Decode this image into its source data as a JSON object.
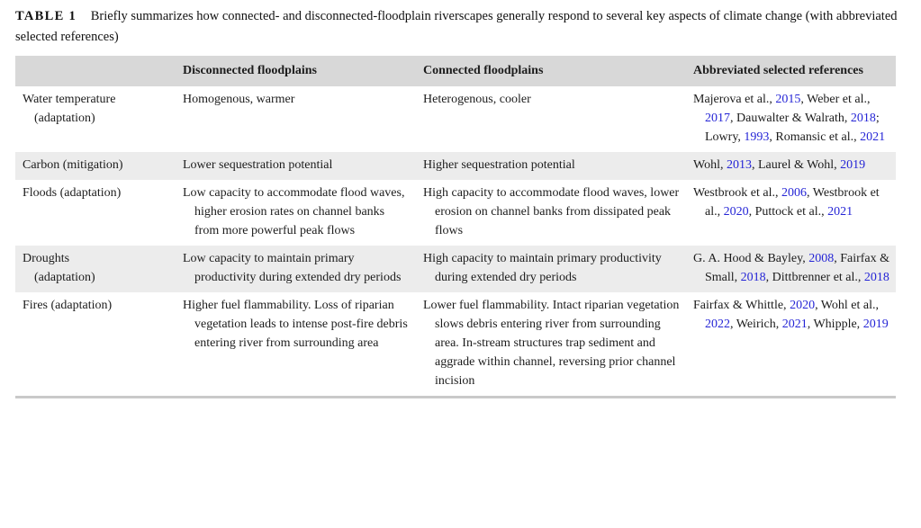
{
  "caption": {
    "label": "TABLE 1",
    "text": "Briefly summarizes how connected- and disconnected-floodplain riverscapes generally respond to several key aspects of climate change (with abbreviated selected references)"
  },
  "colors": {
    "header_bg": "#d8d8d8",
    "alt_row_bg": "#ececec",
    "link_blue": "#2525d6",
    "text": "#1c1c1c",
    "bottom_rule": "#c9c9c9"
  },
  "table": {
    "columns": [
      "",
      "Disconnected floodplains",
      "Connected floodplains",
      "Abbreviated selected references"
    ],
    "rows": [
      {
        "aspect_lines": [
          "Water temperature",
          "(adaptation)"
        ],
        "disconnected": "Homogenous, warmer",
        "connected": "Heterogenous, cooler",
        "references": [
          {
            "text": "Majerova et al., ",
            "year": "2015"
          },
          {
            "text": ", Weber et al., ",
            "year": "2017"
          },
          {
            "text": ", Dauwalter & Walrath, ",
            "year": "2018"
          },
          {
            "text": "; Lowry, ",
            "year": "1993"
          },
          {
            "text": ", Romansic et al., ",
            "year": "2021"
          }
        ]
      },
      {
        "aspect_lines": [
          "Carbon (mitigation)"
        ],
        "disconnected": "Lower sequestration potential",
        "connected": "Higher sequestration potential",
        "references": [
          {
            "text": "Wohl, ",
            "year": "2013"
          },
          {
            "text": ", Laurel & Wohl, ",
            "year": "2019"
          }
        ]
      },
      {
        "aspect_lines": [
          "Floods (adaptation)"
        ],
        "disconnected": "Low capacity to accommodate flood waves, higher erosion rates on channel banks from more powerful peak flows",
        "connected": "High capacity to accommodate flood waves, lower erosion on channel banks from dissipated peak flows",
        "references": [
          {
            "text": "Westbrook et al., ",
            "year": "2006"
          },
          {
            "text": ", Westbrook et al., ",
            "year": "2020"
          },
          {
            "text": ", Puttock et al., ",
            "year": "2021"
          }
        ]
      },
      {
        "aspect_lines": [
          "Droughts",
          "(adaptation)"
        ],
        "disconnected": "Low capacity to maintain primary productivity during extended dry periods",
        "connected": "High capacity to maintain primary productivity during extended dry periods",
        "references": [
          {
            "text": "G. A. Hood & Bayley, ",
            "year": "2008"
          },
          {
            "text": ", Fairfax & Small, ",
            "year": "2018"
          },
          {
            "text": ", Dittbrenner et al., ",
            "year": "2018"
          }
        ]
      },
      {
        "aspect_lines": [
          "Fires (adaptation)"
        ],
        "disconnected": "Higher fuel flammability. Loss of riparian vegetation leads to intense post-fire debris entering river from surrounding area",
        "connected": "Lower fuel flammability. Intact riparian vegetation slows debris entering river from surrounding area. In-stream structures trap sediment and aggrade within channel, reversing prior channel incision",
        "references": [
          {
            "text": "Fairfax & Whittle, ",
            "year": "2020"
          },
          {
            "text": ", Wohl et al., ",
            "year": "2022"
          },
          {
            "text": ", Weirich, ",
            "year": "2021"
          },
          {
            "text": ", Whipple, ",
            "year": "2019"
          }
        ]
      }
    ]
  }
}
